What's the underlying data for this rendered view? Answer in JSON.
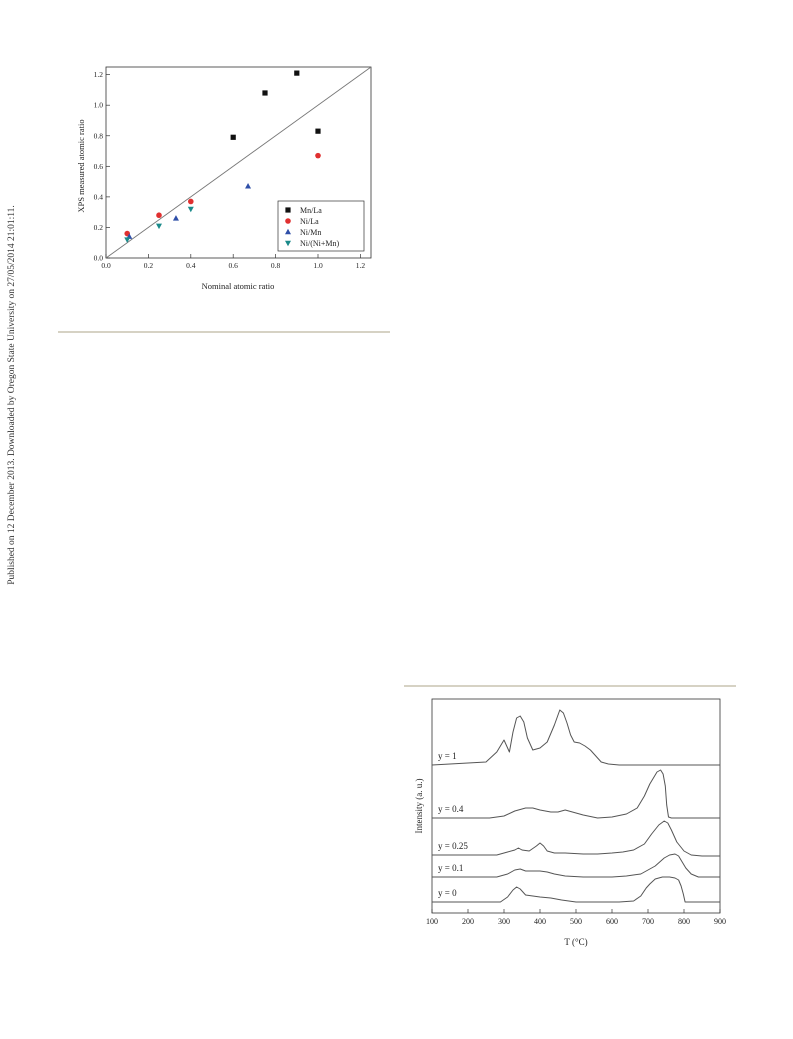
{
  "side_note": "Published on 12 December 2013. Downloaded by Oregon State University on 27/05/2014 21:01:11.",
  "chart_data": [
    {
      "type": "scatter",
      "xlabel": "Nominal atomic ratio",
      "ylabel": "XPS measured atomic ratio",
      "xlim": [
        0.0,
        1.25
      ],
      "ylim": [
        0.0,
        1.25
      ],
      "xticks": [
        "0.0",
        "0.2",
        "0.4",
        "0.6",
        "0.8",
        "1.0",
        "1.2"
      ],
      "yticks": [
        "0.0",
        "0.2",
        "0.4",
        "0.6",
        "0.8",
        "1.0",
        "1.2"
      ],
      "reference_line": "y = x",
      "legend_position": "bottom-right",
      "series": [
        {
          "name": "Mn/La",
          "marker": "square",
          "color": "#111111",
          "x": [
            0.6,
            0.75,
            0.9,
            1.0
          ],
          "y": [
            0.79,
            1.08,
            1.21,
            0.83
          ]
        },
        {
          "name": "Ni/La",
          "marker": "circle",
          "color": "#e03030",
          "x": [
            0.1,
            0.25,
            0.4,
            1.0
          ],
          "y": [
            0.16,
            0.28,
            0.37,
            0.67
          ]
        },
        {
          "name": "Ni/Mn",
          "marker": "triangle-up",
          "color": "#2f4fa8",
          "x": [
            0.11,
            0.33,
            0.67
          ],
          "y": [
            0.14,
            0.26,
            0.47
          ]
        },
        {
          "name": "Ni/(Ni+Mn)",
          "marker": "triangle-down",
          "color": "#1a8a8a",
          "x": [
            0.1,
            0.25,
            0.4
          ],
          "y": [
            0.12,
            0.21,
            0.32
          ]
        }
      ]
    },
    {
      "type": "line",
      "xlabel": "T (°C)",
      "ylabel": "Intensity (a. u.)",
      "xlim": [
        100,
        900
      ],
      "xticks": [
        "100",
        "200",
        "300",
        "400",
        "500",
        "600",
        "700",
        "800",
        "900"
      ],
      "y_ticks_shown": false,
      "series": [
        {
          "name": "y = 1",
          "x": [
            100,
            250,
            280,
            300,
            315,
            325,
            335,
            345,
            355,
            365,
            380,
            400,
            420,
            440,
            455,
            465,
            475,
            485,
            495,
            510,
            525,
            540,
            555,
            570,
            590,
            620,
            700,
            900
          ],
          "y": [
            765,
            762,
            752,
            740,
            752,
            732,
            718,
            716,
            722,
            738,
            750,
            748,
            742,
            725,
            710,
            713,
            723,
            735,
            742,
            743,
            746,
            750,
            756,
            762,
            764,
            765,
            765,
            765
          ]
        },
        {
          "name": "y = 0.4",
          "x": [
            100,
            260,
            300,
            330,
            360,
            380,
            400,
            430,
            450,
            470,
            490,
            520,
            560,
            600,
            640,
            670,
            690,
            705,
            715,
            725,
            735,
            742,
            748,
            752,
            757,
            765,
            800,
            900
          ],
          "y": [
            818,
            818,
            816,
            811,
            808,
            808,
            810,
            812,
            812,
            810,
            812,
            815,
            818,
            817,
            814,
            808,
            796,
            784,
            778,
            772,
            770,
            774,
            786,
            805,
            817,
            818,
            818,
            818
          ]
        },
        {
          "name": "y = 0.25",
          "x": [
            100,
            280,
            310,
            330,
            340,
            350,
            370,
            390,
            400,
            410,
            420,
            440,
            470,
            520,
            560,
            600,
            630,
            660,
            690,
            710,
            730,
            745,
            755,
            765,
            780,
            800,
            820,
            850,
            900
          ],
          "y": [
            855,
            855,
            852,
            850,
            848,
            850,
            851,
            846,
            843,
            846,
            851,
            853,
            853,
            854,
            854,
            853,
            852,
            850,
            844,
            834,
            825,
            821,
            823,
            830,
            842,
            851,
            855,
            856,
            856
          ]
        },
        {
          "name": "y = 0.1",
          "x": [
            100,
            280,
            310,
            330,
            345,
            360,
            380,
            400,
            420,
            440,
            470,
            520,
            560,
            600,
            640,
            680,
            720,
            745,
            760,
            775,
            785,
            795,
            805,
            820,
            840,
            900
          ],
          "y": [
            877,
            877,
            874,
            870,
            869,
            871,
            871,
            871,
            872,
            874,
            876,
            877,
            877,
            877,
            876,
            874,
            866,
            858,
            855,
            854,
            856,
            862,
            868,
            874,
            877,
            877
          ]
        },
        {
          "name": "y = 0",
          "x": [
            100,
            290,
            310,
            325,
            335,
            345,
            360,
            380,
            400,
            430,
            460,
            500,
            560,
            620,
            660,
            680,
            695,
            705,
            720,
            740,
            760,
            775,
            785,
            792,
            798,
            803,
            900
          ],
          "y": [
            902,
            902,
            897,
            890,
            887,
            889,
            895,
            896,
            897,
            898,
            900,
            902,
            902,
            902,
            901,
            896,
            888,
            884,
            879,
            877,
            877,
            878,
            880,
            886,
            894,
            902,
            902
          ]
        }
      ]
    }
  ]
}
